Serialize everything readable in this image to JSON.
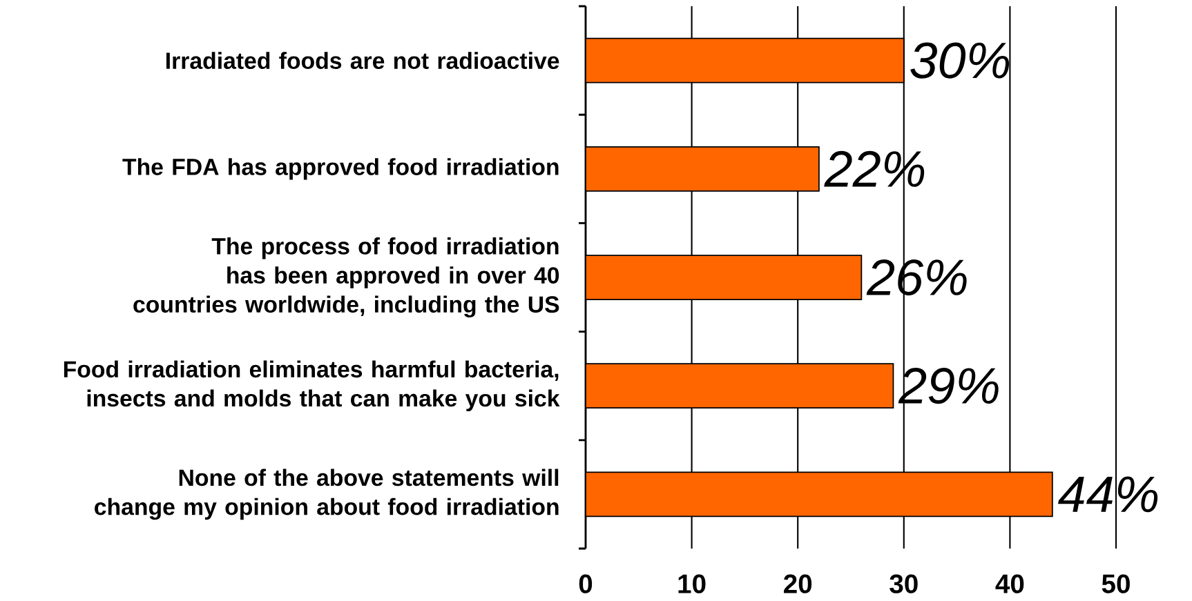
{
  "chart_data": {
    "type": "bar",
    "orientation": "horizontal",
    "categories": [
      "Irradiated foods are not radioactive",
      "The FDA has approved food irradiation",
      "The process of food irradiation has been approved in over 40 countries worldwide, including the US",
      "Food irradiation eliminates harmful bacteria, insects and molds that can make you sick",
      "None of the above statements will change my opinion about food irradiation"
    ],
    "values": [
      30,
      22,
      26,
      29,
      44
    ],
    "value_labels": [
      "30%",
      "22%",
      "26%",
      "29%",
      "44%"
    ],
    "color": "#ff6600",
    "xlim": [
      0,
      50
    ],
    "xticks": [
      0,
      10,
      20,
      30,
      40,
      50
    ],
    "grid": "x"
  }
}
